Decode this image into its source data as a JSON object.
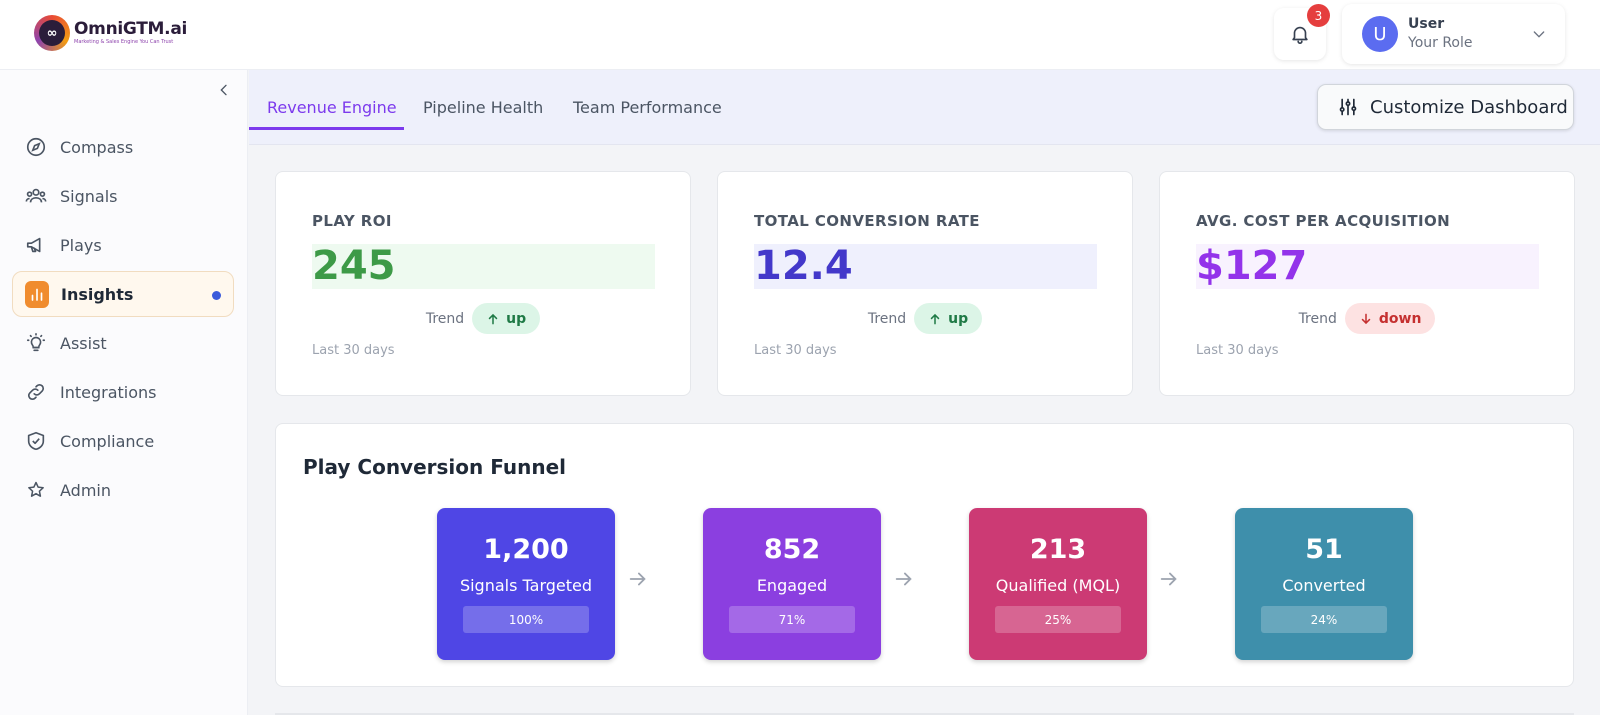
{
  "brand": {
    "name": "OmniGTM.ai",
    "tagline": "Marketing & Sales Engine You Can Trust",
    "mark": "∞"
  },
  "header": {
    "notifications_count": "3",
    "user": {
      "initial": "U",
      "name": "User",
      "role": "Your Role"
    }
  },
  "sidebar": {
    "items": [
      {
        "label": "Compass",
        "icon": "compass-icon",
        "active": false
      },
      {
        "label": "Signals",
        "icon": "users-icon",
        "active": false
      },
      {
        "label": "Plays",
        "icon": "megaphone-icon",
        "active": false
      },
      {
        "label": "Insights",
        "icon": "bar-chart-icon",
        "active": true
      },
      {
        "label": "Assist",
        "icon": "lightbulb-icon",
        "active": false
      },
      {
        "label": "Integrations",
        "icon": "link-icon",
        "active": false
      },
      {
        "label": "Compliance",
        "icon": "shield-check-icon",
        "active": false
      },
      {
        "label": "Admin",
        "icon": "star-icon",
        "active": false
      }
    ]
  },
  "tabs": [
    {
      "label": "Revenue Engine",
      "active": true
    },
    {
      "label": "Pipeline Health",
      "active": false
    },
    {
      "label": "Team Performance",
      "active": false
    }
  ],
  "toolbar": {
    "customize_label": "Customize Dashboard"
  },
  "kpis": [
    {
      "title": "PLAY ROI",
      "value": "245",
      "trend_label": "Trend",
      "trend": "up",
      "period": "Last 30 days",
      "color": "#3d9a47",
      "bg": "#eefaf0"
    },
    {
      "title": "TOTAL CONVERSION RATE",
      "value": "12.4",
      "trend_label": "Trend",
      "trend": "up",
      "period": "Last 30 days",
      "color": "#4338ca",
      "bg": "#eff0fd"
    },
    {
      "title": "AVG. COST PER ACQUISITION",
      "value": "$127",
      "trend_label": "Trend",
      "trend": "down",
      "period": "Last 30 days",
      "color": "#9333ea",
      "bg": "#f8f2fe"
    }
  ],
  "funnel": {
    "title": "Play Conversion Funnel",
    "stages": [
      {
        "count": "1,200",
        "name": "Signals Targeted",
        "pct": "100%",
        "color": "#4f46e5"
      },
      {
        "count": "852",
        "name": "Engaged",
        "pct": "71%",
        "color": "#8b3fe0"
      },
      {
        "count": "213",
        "name": "Qualified (MQL)",
        "pct": "25%",
        "color": "#cc3a74"
      },
      {
        "count": "51",
        "name": "Converted",
        "pct": "24%",
        "color": "#3e8fab"
      }
    ]
  }
}
